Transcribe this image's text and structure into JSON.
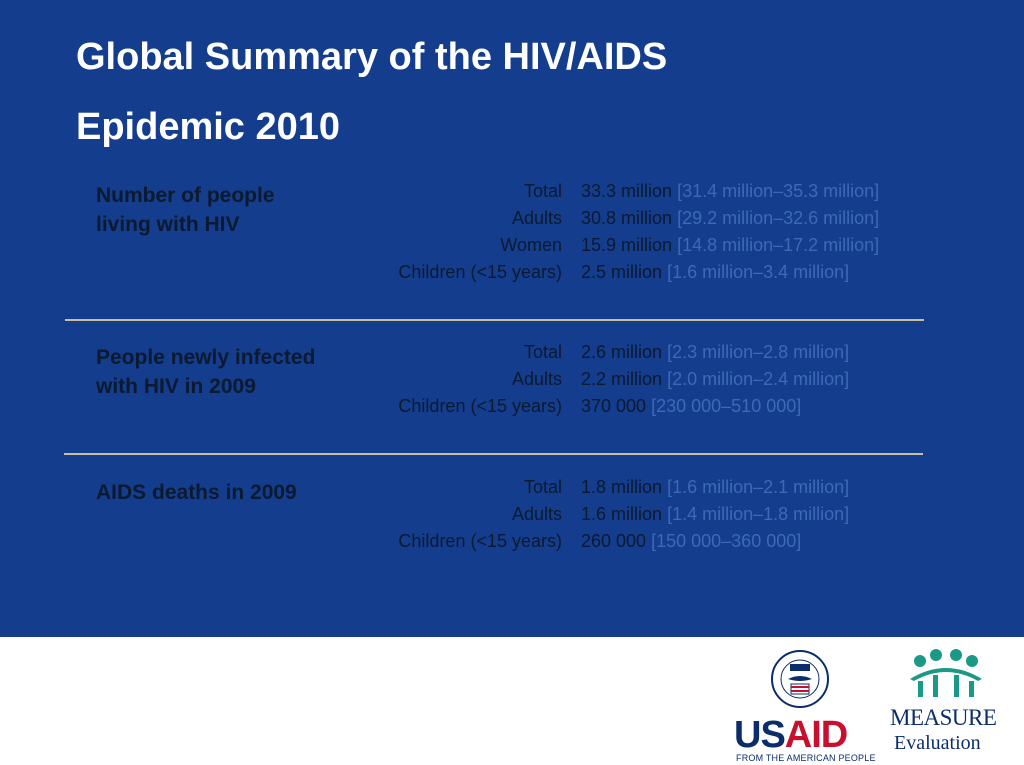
{
  "slide": {
    "title_line1": "Global Summary of the HIV/AIDS",
    "title_line2": "Epidemic 2010"
  },
  "sections": [
    {
      "heading_line1": "Number of people",
      "heading_line2": "living with HIV",
      "rows": [
        {
          "label": "Total",
          "value": "33.3 million",
          "range": "[31.4 million–35.3 million]"
        },
        {
          "label": "Adults",
          "value": "30.8 million",
          "range": "[29.2 million–32.6 million]"
        },
        {
          "label": "Women",
          "value": "15.9 million",
          "range": "[14.8 million–17.2 million]"
        },
        {
          "label": "Children (<15 years)",
          "value": "2.5 million",
          "range": "[1.6 million–3.4 million]"
        }
      ]
    },
    {
      "heading_line1": "People newly infected",
      "heading_line2": "with HIV in 2009",
      "rows": [
        {
          "label": "Total",
          "value": "2.6 million",
          "range": "[2.3 million–2.8 million]"
        },
        {
          "label": "Adults",
          "value": "2.2 million",
          "range": "[2.0 million–2.4 million]"
        },
        {
          "label": "Children (<15 years)",
          "value": "370 000",
          "range": "[230 000–510 000]"
        }
      ]
    },
    {
      "heading_line1": "AIDS deaths in 2009",
      "heading_line2": "",
      "rows": [
        {
          "label": "Total",
          "value": "1.8 million",
          "range": "[1.6 million–2.1 million]"
        },
        {
          "label": "Adults",
          "value": "1.6 million",
          "range": "[1.4 million–1.8 million]"
        },
        {
          "label": "Children (<15 years)",
          "value": "260 000",
          "range": "[150 000–360 000]"
        }
      ]
    }
  ],
  "logos": {
    "usaid_us": "US",
    "usaid_aid": "AID",
    "usaid_tagline": "FROM THE AMERICAN PEOPLE",
    "usaid_seal_icon": "usaid-seal-icon",
    "measure_name": "MEASURE",
    "measure_sub": "Evaluation",
    "measure_icon": "measure-people-icon"
  },
  "colors": {
    "background": "#143d8e",
    "title": "#ffffff",
    "text": "#0c1a30",
    "range_text": "#3c6ab3",
    "divider": "#c8bf9c",
    "usaid_blue": "#0b2d6b",
    "usaid_red": "#c8102e",
    "measure_green": "#1a9a86"
  }
}
